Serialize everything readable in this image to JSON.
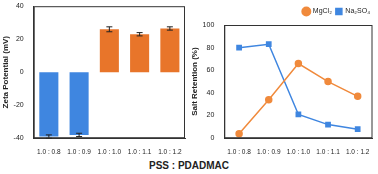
{
  "chart_data": [
    {
      "type": "bar",
      "ylabel": "Zeta Potential (mV)",
      "categories": [
        "1.0 : 0.8",
        "1.0 : 0.9",
        "1.0 : 1.0",
        "1.0 : 1.1",
        "1.0 : 1.2"
      ],
      "values": [
        -39,
        -38,
        26,
        23,
        26.5
      ],
      "errors": [
        1,
        1,
        1.5,
        1,
        1
      ],
      "colors": [
        "#3f86e0",
        "#3f86e0",
        "#e8752a",
        "#e8752a",
        "#e8752a"
      ],
      "ylim": [
        -40,
        40
      ],
      "yticks": [
        -40,
        -20,
        0,
        20,
        40
      ],
      "grid": false
    },
    {
      "type": "line",
      "ylabel": "Salt Retention (%)",
      "categories": [
        "1.0 : 0.8",
        "1.0 : 0.9",
        "1.0 : 1.0",
        "1.0 : 1.1",
        "1.0 : 1.2"
      ],
      "series": [
        {
          "name": "MgCl₂",
          "color": "#f08a3c",
          "marker": "circle",
          "values": [
            4,
            34,
            66,
            50,
            37
          ]
        },
        {
          "name": "Na₂SO₄",
          "color": "#3f86e0",
          "marker": "square",
          "values": [
            80,
            83,
            21,
            12,
            8
          ]
        }
      ],
      "ylim": [
        0,
        100
      ],
      "yticks": [
        0,
        20,
        40,
        60,
        80,
        100
      ],
      "grid": false,
      "legend": "upper right"
    }
  ],
  "xlabel": "PSS : PDADMAC"
}
